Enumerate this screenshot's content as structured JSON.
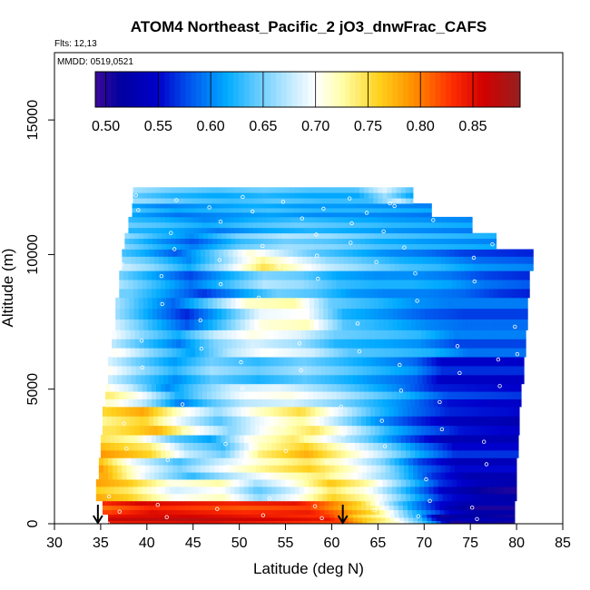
{
  "chart_data": {
    "type": "heatmap",
    "title": "ATOM4 Northeast_Pacific_2 jO3_dnwFrac_CAFS",
    "info_flights": "Flts: 12,13",
    "info_dates": "MMDD: 0519,0521",
    "xlabel": "Latitude (deg N)",
    "ylabel": "Altitude (m)",
    "xlim": [
      30,
      85
    ],
    "ylim": [
      0,
      17500
    ],
    "x_ticks": [
      30,
      35,
      40,
      45,
      50,
      55,
      60,
      65,
      70,
      75,
      80,
      85
    ],
    "y_ticks": [
      0,
      5000,
      10000,
      15000
    ],
    "colorbar": {
      "range": [
        0.49,
        0.895
      ],
      "ticks": [
        0.5,
        0.55,
        0.6,
        0.65,
        0.7,
        0.75,
        0.8,
        0.85
      ],
      "tick_labels": [
        "0.50",
        "0.55",
        "0.60",
        "0.65",
        "0.70",
        "0.75",
        "0.80",
        "0.85"
      ],
      "stops": [
        {
          "v": 0.49,
          "c": "#3c0a9a"
        },
        {
          "v": 0.515,
          "c": "#0000a0"
        },
        {
          "v": 0.55,
          "c": "#0000cc"
        },
        {
          "v": 0.58,
          "c": "#0055ee"
        },
        {
          "v": 0.615,
          "c": "#00aaff"
        },
        {
          "v": 0.645,
          "c": "#66ccff"
        },
        {
          "v": 0.68,
          "c": "#cceeff"
        },
        {
          "v": 0.7,
          "c": "#ffffff"
        },
        {
          "v": 0.725,
          "c": "#ffffaa"
        },
        {
          "v": 0.76,
          "c": "#ffd21e"
        },
        {
          "v": 0.79,
          "c": "#ff9600"
        },
        {
          "v": 0.83,
          "c": "#ff2d00"
        },
        {
          "v": 0.86,
          "c": "#d20000"
        },
        {
          "v": 0.895,
          "c": "#962020"
        }
      ]
    },
    "arrows_latitude": [
      34.7,
      61.2
    ],
    "curtain_layers": [
      {
        "alt": [
          0,
          350
        ],
        "lat": [
          35.8,
          79.8
        ],
        "profile": [
          [
            35.8,
            0.86
          ],
          [
            45,
            0.87
          ],
          [
            55,
            0.85
          ],
          [
            60,
            0.84
          ],
          [
            63,
            0.77
          ],
          [
            66,
            0.73
          ],
          [
            70,
            0.62
          ],
          [
            72,
            0.52
          ],
          [
            75,
            0.53
          ],
          [
            79.8,
            0.52
          ]
        ]
      },
      {
        "alt": [
          350,
          850
        ],
        "lat": [
          35.2,
          79.8
        ],
        "profile": [
          [
            35.2,
            0.81
          ],
          [
            40,
            0.84
          ],
          [
            50,
            0.82
          ],
          [
            57,
            0.83
          ],
          [
            61,
            0.78
          ],
          [
            64,
            0.74
          ],
          [
            68,
            0.62
          ],
          [
            72,
            0.54
          ],
          [
            75,
            0.51
          ],
          [
            79.8,
            0.51
          ]
        ]
      },
      {
        "alt": [
          850,
          1650
        ],
        "lat": [
          34.5,
          80.0
        ],
        "profile": [
          [
            34.5,
            0.78
          ],
          [
            38,
            0.76
          ],
          [
            43,
            0.7
          ],
          [
            48,
            0.72
          ],
          [
            52,
            0.66
          ],
          [
            56,
            0.7
          ],
          [
            60,
            0.76
          ],
          [
            64,
            0.72
          ],
          [
            68,
            0.64
          ],
          [
            72,
            0.56
          ],
          [
            76,
            0.53
          ],
          [
            80,
            0.52
          ]
        ]
      },
      {
        "alt": [
          1650,
          2450
        ],
        "lat": [
          34.8,
          80.0
        ],
        "profile": [
          [
            34.8,
            0.79
          ],
          [
            39,
            0.7
          ],
          [
            44,
            0.64
          ],
          [
            48,
            0.68
          ],
          [
            53,
            0.72
          ],
          [
            58,
            0.75
          ],
          [
            62,
            0.71
          ],
          [
            66,
            0.66
          ],
          [
            70,
            0.58
          ],
          [
            74,
            0.54
          ],
          [
            80,
            0.54
          ]
        ]
      },
      {
        "alt": [
          2450,
          3300
        ],
        "lat": [
          35.0,
          80.2
        ],
        "profile": [
          [
            35.0,
            0.77
          ],
          [
            40,
            0.74
          ],
          [
            44,
            0.66
          ],
          [
            48,
            0.63
          ],
          [
            52,
            0.72
          ],
          [
            57,
            0.76
          ],
          [
            61,
            0.71
          ],
          [
            65,
            0.66
          ],
          [
            69,
            0.6
          ],
          [
            73,
            0.55
          ],
          [
            80.2,
            0.55
          ]
        ]
      },
      {
        "alt": [
          3300,
          4350
        ],
        "lat": [
          35.2,
          80.3
        ],
        "profile": [
          [
            35.2,
            0.74
          ],
          [
            40,
            0.77
          ],
          [
            44,
            0.7
          ],
          [
            48,
            0.65
          ],
          [
            52,
            0.7
          ],
          [
            57,
            0.74
          ],
          [
            61,
            0.68
          ],
          [
            65,
            0.62
          ],
          [
            69,
            0.58
          ],
          [
            73,
            0.55
          ],
          [
            80.3,
            0.54
          ]
        ]
      },
      {
        "alt": [
          4350,
          5200
        ],
        "lat": [
          35.5,
          80.5
        ],
        "profile": [
          [
            35.5,
            0.72
          ],
          [
            39,
            0.68
          ],
          [
            43,
            0.6
          ],
          [
            46,
            0.64
          ],
          [
            50,
            0.68
          ],
          [
            55,
            0.69
          ],
          [
            60,
            0.66
          ],
          [
            64,
            0.63
          ],
          [
            68,
            0.6
          ],
          [
            72,
            0.56
          ],
          [
            80.5,
            0.55
          ]
        ]
      },
      {
        "alt": [
          5200,
          6200
        ],
        "lat": [
          35.8,
          80.8
        ],
        "profile": [
          [
            35.8,
            0.7
          ],
          [
            39,
            0.66
          ],
          [
            43,
            0.62
          ],
          [
            47,
            0.66
          ],
          [
            52,
            0.64
          ],
          [
            57,
            0.66
          ],
          [
            61,
            0.64
          ],
          [
            65,
            0.62
          ],
          [
            69,
            0.6
          ],
          [
            72,
            0.56
          ],
          [
            80.8,
            0.56
          ]
        ]
      },
      {
        "alt": [
          6200,
          7200
        ],
        "lat": [
          36.2,
          81.0
        ],
        "profile": [
          [
            36.2,
            0.69
          ],
          [
            40,
            0.64
          ],
          [
            44,
            0.6
          ],
          [
            48,
            0.66
          ],
          [
            52,
            0.69
          ],
          [
            57,
            0.67
          ],
          [
            61,
            0.63
          ],
          [
            66,
            0.62
          ],
          [
            70,
            0.61
          ],
          [
            74,
            0.58
          ],
          [
            81,
            0.58
          ]
        ]
      },
      {
        "alt": [
          7200,
          8400
        ],
        "lat": [
          36.6,
          81.2
        ],
        "profile": [
          [
            36.6,
            0.68
          ],
          [
            40,
            0.63
          ],
          [
            44,
            0.58
          ],
          [
            48,
            0.64
          ],
          [
            52,
            0.71
          ],
          [
            57,
            0.72
          ],
          [
            61,
            0.64
          ],
          [
            66,
            0.62
          ],
          [
            70,
            0.6
          ],
          [
            74,
            0.59
          ],
          [
            81.2,
            0.59
          ]
        ]
      },
      {
        "alt": [
          8400,
          9400
        ],
        "lat": [
          37.0,
          81.4
        ],
        "profile": [
          [
            37.0,
            0.66
          ],
          [
            41,
            0.62
          ],
          [
            45,
            0.58
          ],
          [
            49,
            0.62
          ],
          [
            53,
            0.66
          ],
          [
            57,
            0.65
          ],
          [
            61,
            0.62
          ],
          [
            65,
            0.61
          ],
          [
            69,
            0.61
          ],
          [
            73,
            0.6
          ],
          [
            77,
            0.58
          ],
          [
            81.4,
            0.57
          ]
        ]
      },
      {
        "alt": [
          9400,
          10200
        ],
        "lat": [
          37.3,
          81.8
        ],
        "profile": [
          [
            37.3,
            0.66
          ],
          [
            40,
            0.64
          ],
          [
            44,
            0.6
          ],
          [
            48,
            0.66
          ],
          [
            52,
            0.73
          ],
          [
            55,
            0.7
          ],
          [
            59,
            0.66
          ],
          [
            63,
            0.64
          ],
          [
            67,
            0.62
          ],
          [
            71,
            0.61
          ],
          [
            75,
            0.59
          ],
          [
            81.8,
            0.58
          ]
        ]
      },
      {
        "alt": [
          10200,
          10800
        ],
        "lat": [
          37.6,
          77.8
        ],
        "profile": [
          [
            37.6,
            0.65
          ],
          [
            41,
            0.62
          ],
          [
            45,
            0.59
          ],
          [
            50,
            0.64
          ],
          [
            55,
            0.66
          ],
          [
            60,
            0.65
          ],
          [
            65,
            0.63
          ],
          [
            70,
            0.62
          ],
          [
            77.8,
            0.61
          ]
        ]
      },
      {
        "alt": [
          10800,
          11400
        ],
        "lat": [
          38.0,
          75.2
        ],
        "profile": [
          [
            38.0,
            0.63
          ],
          [
            42,
            0.62
          ],
          [
            47,
            0.6
          ],
          [
            52,
            0.62
          ],
          [
            57,
            0.63
          ],
          [
            62,
            0.62
          ],
          [
            67,
            0.61
          ],
          [
            75.2,
            0.6
          ]
        ]
      },
      {
        "alt": [
          11400,
          11900
        ],
        "lat": [
          38.4,
          70.8
        ],
        "profile": [
          [
            38.4,
            0.63
          ],
          [
            43,
            0.61
          ],
          [
            48,
            0.62
          ],
          [
            53,
            0.63
          ],
          [
            58,
            0.62
          ],
          [
            63,
            0.62
          ],
          [
            70.8,
            0.61
          ]
        ]
      },
      {
        "alt": [
          11900,
          12500
        ],
        "lat": [
          38.5,
          68.8
        ],
        "profile": [
          [
            38.5,
            0.65
          ],
          [
            43,
            0.63
          ],
          [
            48,
            0.62
          ],
          [
            53,
            0.63
          ],
          [
            58,
            0.62
          ],
          [
            63,
            0.62
          ],
          [
            66,
            0.67
          ],
          [
            68.8,
            0.62
          ]
        ]
      }
    ]
  }
}
